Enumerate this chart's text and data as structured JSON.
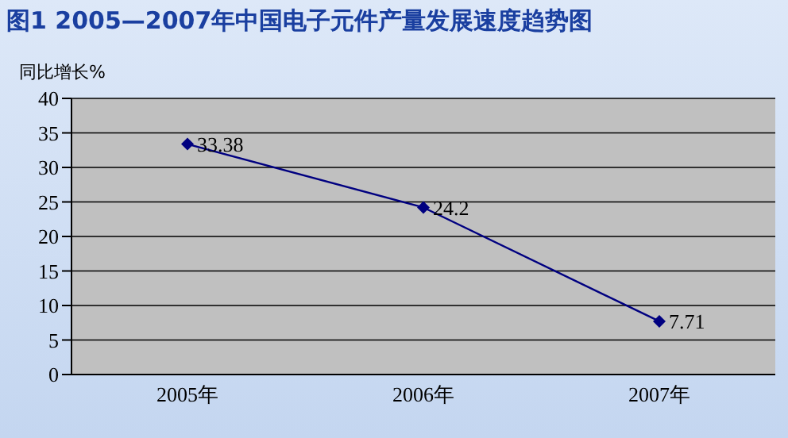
{
  "chart_data": {
    "type": "line",
    "title": "图1 2005—2007年中国电子元件产量发展速度趋势图",
    "ylabel": "同比增长%",
    "categories": [
      "2005年",
      "2006年",
      "2007年"
    ],
    "series": [
      {
        "color": "#000080",
        "values": [
          33.38,
          24.2,
          7.71
        ]
      }
    ],
    "ylim": [
      0,
      40
    ],
    "yticks": [
      0,
      5,
      10,
      15,
      20,
      25,
      30,
      35,
      40
    ],
    "grid": "y",
    "marker": "diamond",
    "line_style": "solid",
    "data_labels": true,
    "legend": false
  }
}
